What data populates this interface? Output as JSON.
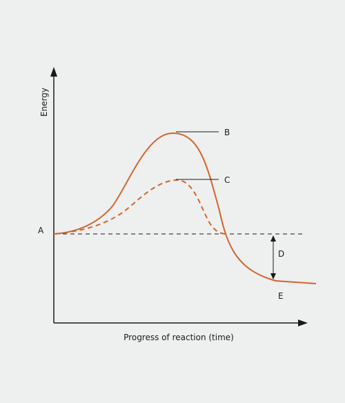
{
  "diagram": {
    "title": "",
    "y_axis_label": "Energy",
    "x_axis_label": "Progress of reaction (time)",
    "labels": {
      "a": "A",
      "b": "B",
      "c": "C",
      "d": "D",
      "e": "E"
    },
    "colors": {
      "curve": "#d0652c",
      "axis": "#1a1a1a",
      "background": "#eeefef"
    }
  }
}
